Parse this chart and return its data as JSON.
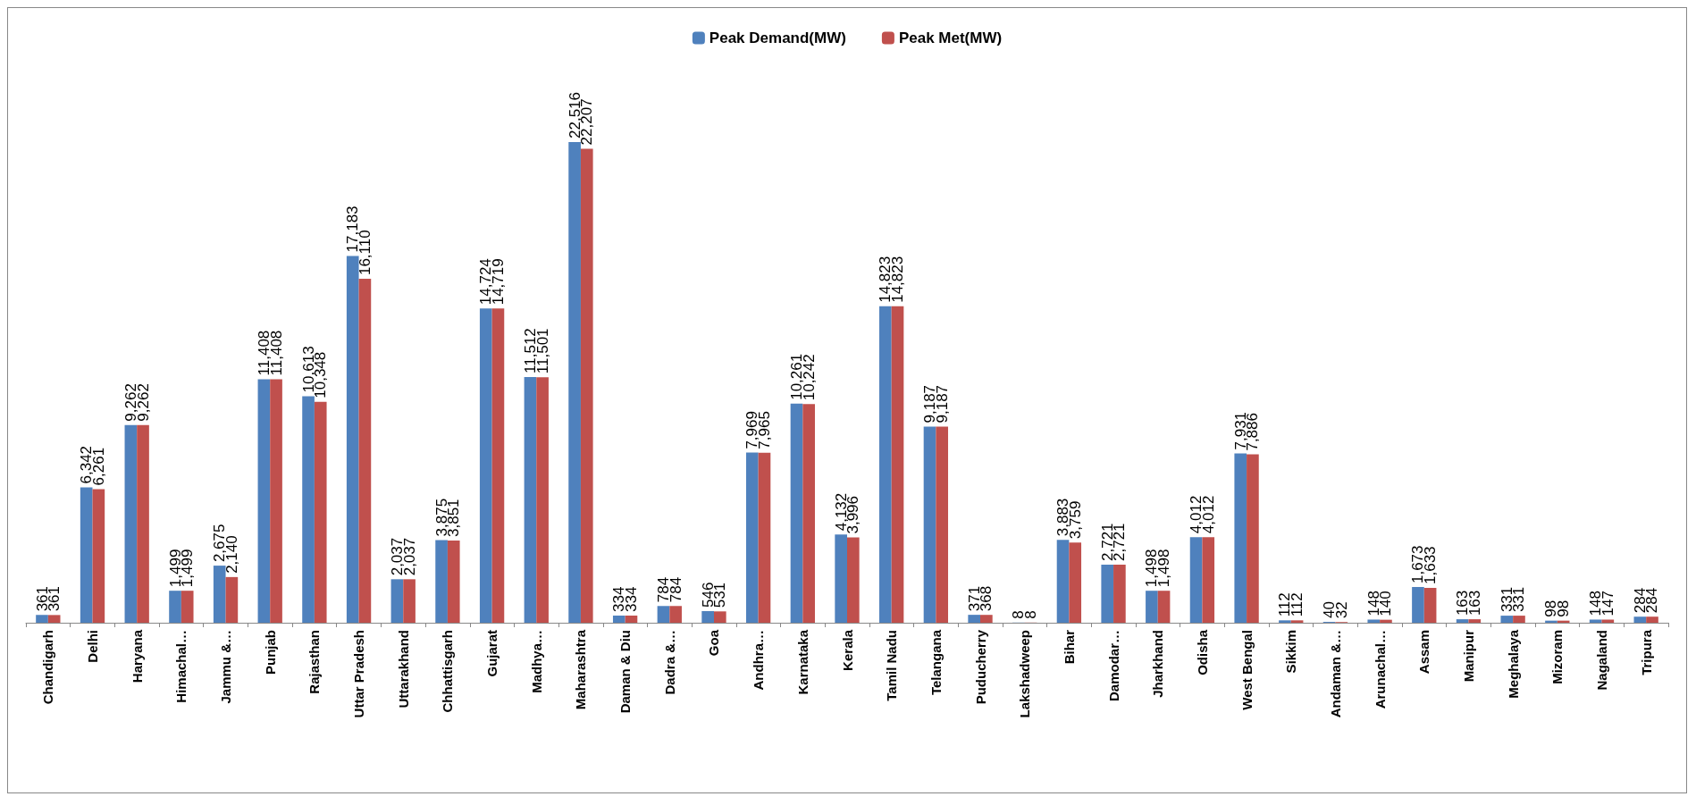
{
  "chart_data": {
    "type": "bar",
    "categories": [
      "Chandigarh",
      "Delhi",
      "Haryana",
      "Himachal…",
      "Jammu &…",
      "Punjab",
      "Rajasthan",
      "Uttar Pradesh",
      "Uttarakhand",
      "Chhattisgarh",
      "Gujarat",
      "Madhya…",
      "Maharashtra",
      "Daman & Diu",
      "Dadra &…",
      "Goa",
      "Andhra…",
      "Karnataka",
      "Kerala",
      "Tamil Nadu",
      "Telangana",
      "Puducherry",
      "Lakshadweep",
      "Bihar",
      "Damodar…",
      "Jharkhand",
      "Odisha",
      "West Bengal",
      "Sikkim",
      "Andaman &…",
      "Arunachal…",
      "Assam",
      "Manipur",
      "Meghalaya",
      "Mizoram",
      "Nagaland",
      "Tripura"
    ],
    "series": [
      {
        "name": "Peak Demand(MW)",
        "color": "#4f81bd",
        "values": [
          361,
          6342,
          9262,
          1499,
          2675,
          11408,
          10613,
          17183,
          2037,
          3875,
          14724,
          11512,
          22516,
          334,
          784,
          546,
          7969,
          10261,
          4132,
          14823,
          9187,
          371,
          8,
          3883,
          2721,
          1498,
          4012,
          7931,
          112,
          40,
          148,
          1673,
          163,
          331,
          98,
          148,
          284
        ],
        "value_labels": [
          "361",
          "6,342",
          "9,262",
          "1,499",
          "2,675",
          "11,408",
          "10,613",
          "17,183",
          "2,037",
          "3,875",
          "14,724",
          "11,512",
          "22,516",
          "334",
          "784",
          "546",
          "7,969",
          "10,261",
          "4,132",
          "14,823",
          "9,187",
          "371",
          "8",
          "3,883",
          "2,721",
          "1,498",
          "4,012",
          "7,931",
          "112",
          "40",
          "148",
          "1,673",
          "163",
          "331",
          "98",
          "148",
          "284"
        ]
      },
      {
        "name": "Peak Met(MW)",
        "color": "#c0504d",
        "values": [
          361,
          6261,
          9262,
          1499,
          2140,
          11408,
          10348,
          16110,
          2037,
          3851,
          14719,
          11501,
          22207,
          334,
          784,
          531,
          7965,
          10242,
          3996,
          14823,
          9187,
          368,
          8,
          3759,
          2721,
          1498,
          4012,
          7886,
          112,
          32,
          140,
          1633,
          163,
          331,
          98,
          147,
          284
        ],
        "value_labels": [
          "361",
          "6,261",
          "9,262",
          "1,499",
          "2,140",
          "11,408",
          "10,348",
          "16,110",
          "2,037",
          "3,851",
          "14,719",
          "11,501",
          "22,207",
          "334",
          "784",
          "531",
          "7,965",
          "10,242",
          "3,996",
          "14,823",
          "9,187",
          "368",
          "8",
          "3,759",
          "2,721",
          "1,498",
          "4,012",
          "7,886",
          "112",
          "32",
          "140",
          "1,633",
          "163",
          "331",
          "98",
          "147",
          "284"
        ]
      }
    ],
    "legend": "top"
  }
}
